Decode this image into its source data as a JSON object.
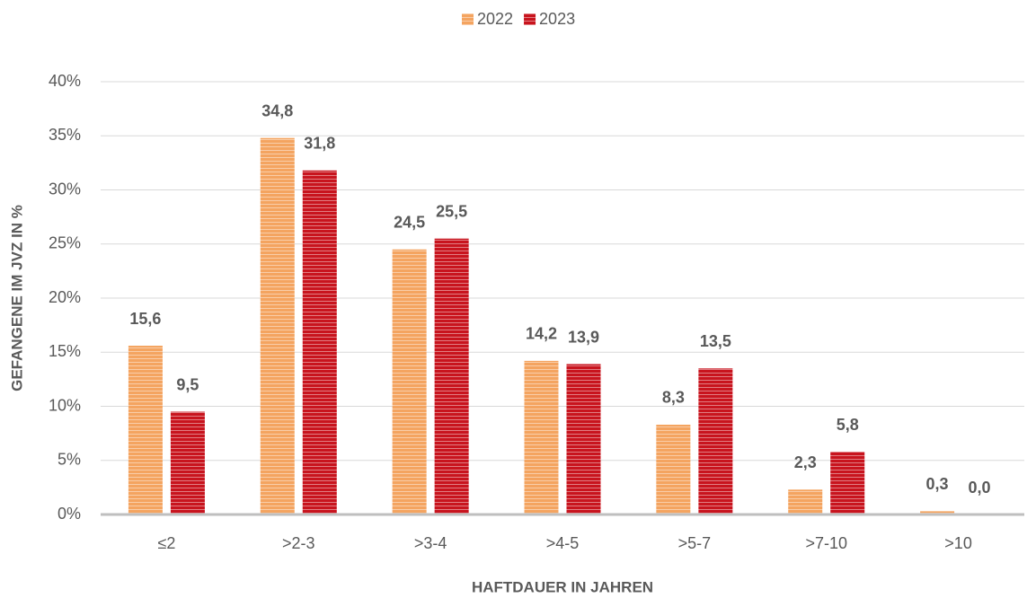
{
  "chart_data": {
    "type": "bar",
    "categories": [
      "≤2",
      ">2-3",
      ">3-4",
      ">4-5",
      ">5-7",
      ">7-10",
      ">10"
    ],
    "series": [
      {
        "name": "2022",
        "color": "#f4a460",
        "values": [
          15.6,
          34.8,
          24.5,
          14.2,
          8.3,
          2.3,
          0.3
        ],
        "value_labels": [
          "15,6",
          "34,8",
          "24,5",
          "14,2",
          "8,3",
          "2,3",
          "0,3"
        ]
      },
      {
        "name": "2023",
        "color": "#c8141e",
        "values": [
          9.5,
          31.8,
          25.5,
          13.9,
          13.5,
          5.8,
          0.0
        ],
        "value_labels": [
          "9,5",
          "31,8",
          "25,5",
          "13,9",
          "13,5",
          "5,8",
          "0,0"
        ]
      }
    ],
    "ylim": [
      0,
      40
    ],
    "yticks": [
      {
        "value": 0,
        "label": "0%"
      },
      {
        "value": 5,
        "label": "5%"
      },
      {
        "value": 10,
        "label": "10%"
      },
      {
        "value": 15,
        "label": "15%"
      },
      {
        "value": 20,
        "label": "20%"
      },
      {
        "value": 25,
        "label": "25%"
      },
      {
        "value": 30,
        "label": "30%"
      },
      {
        "value": 35,
        "label": "35%"
      },
      {
        "value": 40,
        "label": "40%"
      }
    ],
    "y_label": "GEFANGENE IM JVZ IN %",
    "x_label": "HAFTDAUER IN JAHREN",
    "grid": true,
    "legend": "top"
  }
}
